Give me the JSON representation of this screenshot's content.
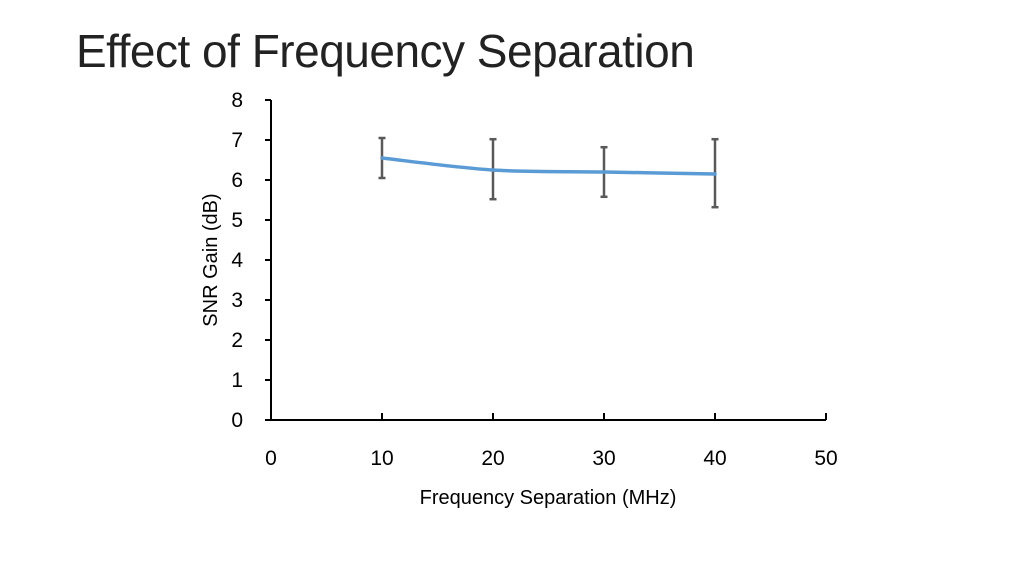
{
  "slide": {
    "title": "Effect of Frequency Separation"
  },
  "chart_data": {
    "type": "line",
    "title": "",
    "xlabel": "Frequency Separation (MHz)",
    "ylabel": "SNR Gain (dB)",
    "xlim": [
      0,
      50
    ],
    "ylim": [
      0,
      8
    ],
    "xticks": [
      0,
      10,
      20,
      30,
      40,
      50
    ],
    "yticks": [
      0,
      1,
      2,
      3,
      4,
      5,
      6,
      7,
      8
    ],
    "grid": false,
    "legend": "none",
    "series": [
      {
        "x": [
          10,
          20,
          30,
          40
        ],
        "y": [
          6.55,
          6.25,
          6.2,
          6.15
        ],
        "error_low": [
          6.05,
          5.52,
          5.58,
          5.32
        ],
        "error_high": [
          7.05,
          7.02,
          6.82,
          7.02
        ],
        "color": "#5b9bd5",
        "smooth": true
      }
    ],
    "error_bar_color": "#595959",
    "axis_color": "#000000"
  }
}
